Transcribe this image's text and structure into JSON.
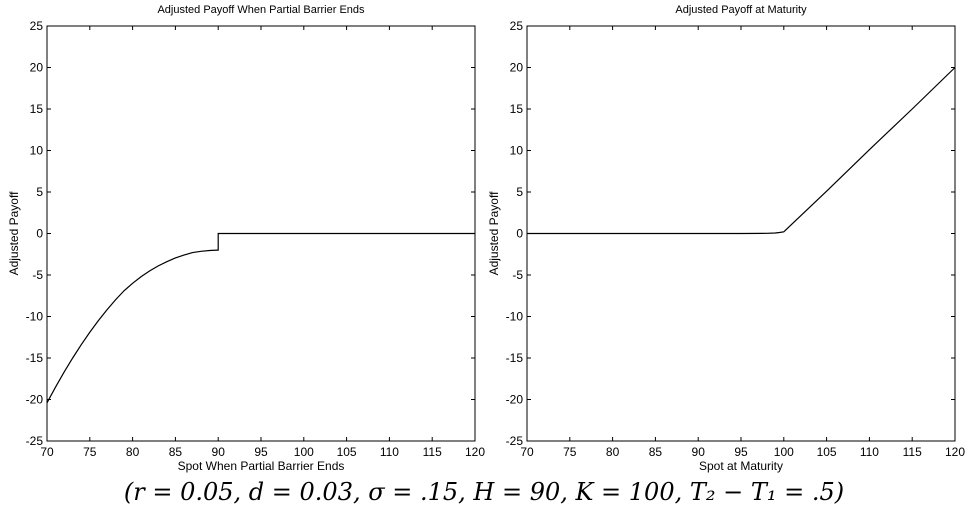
{
  "caption": "(r = 0.05, d = 0.03, σ = .15, H = 90, K = 100, T₂ − T₁ = .5)",
  "chart_data": [
    {
      "type": "line",
      "title": "Adjusted Payoff When Partial Barrier Ends",
      "xlabel": "Spot When Partial Barrier Ends",
      "ylabel": "Adjusted Payoff",
      "xlim": [
        70,
        120
      ],
      "ylim": [
        -25,
        25
      ],
      "xticks": [
        "70",
        "75",
        "80",
        "85",
        "90",
        "95",
        "100",
        "105",
        "110",
        "115",
        "120"
      ],
      "yticks": [
        "-25",
        "-20",
        "-15",
        "-10",
        "-5",
        "0",
        "5",
        "10",
        "15",
        "20",
        "25"
      ],
      "grid": false,
      "x": [
        70,
        71,
        72,
        73,
        74,
        75,
        76,
        77,
        78,
        79,
        80,
        81,
        82,
        83,
        84,
        85,
        86,
        87,
        88,
        89,
        89.9,
        90,
        90,
        95,
        100,
        105,
        110,
        115,
        120
      ],
      "y": [
        -20.4,
        -18.5,
        -16.7,
        -15.0,
        -13.4,
        -11.9,
        -10.5,
        -9.2,
        -8.0,
        -6.9,
        -6.0,
        -5.2,
        -4.5,
        -3.9,
        -3.4,
        -2.95,
        -2.6,
        -2.3,
        -2.15,
        -2.05,
        -2.0,
        -2.0,
        0,
        0,
        0,
        0,
        0,
        0,
        0
      ]
    },
    {
      "type": "line",
      "title": "Adjusted Payoff at Maturity",
      "xlabel": "Spot at Maturity",
      "ylabel": "Adjusted Payoff",
      "xlim": [
        70,
        120
      ],
      "ylim": [
        -25,
        25
      ],
      "xticks": [
        "70",
        "75",
        "80",
        "85",
        "90",
        "95",
        "100",
        "105",
        "110",
        "115",
        "120"
      ],
      "yticks": [
        "-25",
        "-20",
        "-15",
        "-10",
        "-5",
        "0",
        "5",
        "10",
        "15",
        "20",
        "25"
      ],
      "grid": false,
      "x": [
        70,
        80,
        90,
        95,
        98,
        99,
        99.5,
        100,
        105,
        110,
        115,
        120
      ],
      "y": [
        0,
        0,
        0,
        0,
        0.02,
        0.06,
        0.12,
        0.2,
        5.1,
        10.1,
        15.0,
        20.0
      ]
    }
  ]
}
